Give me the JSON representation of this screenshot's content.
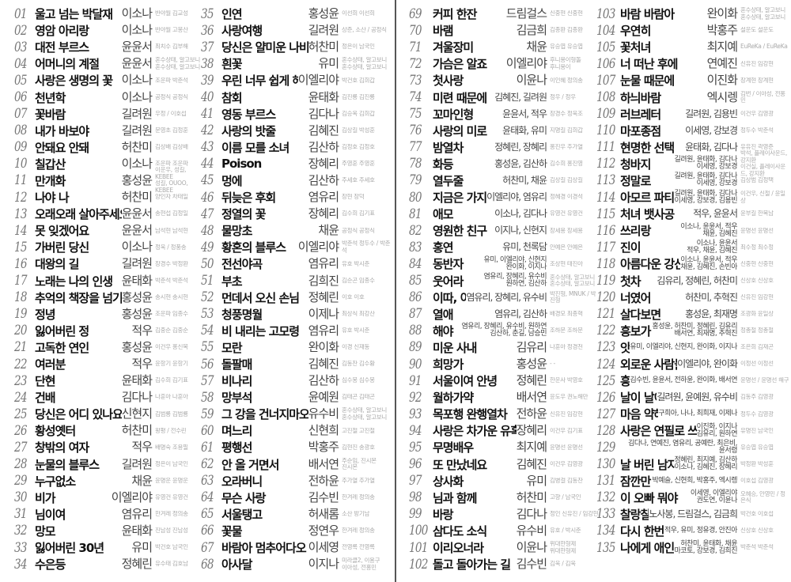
{
  "songs": [
    [
      "01",
      "울고 넘는 박달재",
      "이소나",
      "반야월 김교성"
    ],
    [
      "02",
      "영암 아리랑",
      "이소나",
      "반야월 고봉산"
    ],
    [
      "03",
      "대전 부르스",
      "윤윤서",
      "최치수 김부해"
    ],
    [
      "04",
      "어머니의 계절",
      "윤윤서",
      "혼수상태, 알고보니\n혼수상태, 알고보니"
    ],
    [
      "05",
      "사랑은 생명의 꽃",
      "이소나",
      "조운파 박춘석"
    ],
    [
      "06",
      "천년학",
      "이소나",
      "공정식 공정식"
    ],
    [
      "07",
      "꽃바람",
      "길려원",
      "우정 / 이호섭"
    ],
    [
      "08",
      "내가 바보야",
      "길려원",
      "문영초 김정훈"
    ],
    [
      "09",
      "안돼요 안돼",
      "허찬미",
      "김상배 김상배"
    ],
    [
      "10",
      "칠갑산",
      "이소나",
      "조운파 조운파"
    ],
    [
      "11",
      "만개화",
      "홍성윤",
      "이운우, 성길, KEBEE\n성길, OUOO, KEBEE"
    ],
    [
      "12",
      "나야 나",
      "허찬미",
      "양인자 차태일"
    ],
    [
      "13",
      "오래오래 살아주세요",
      "윤윤서",
      "송현섭 김정일"
    ],
    [
      "14",
      "못 잊겠어요",
      "윤윤서",
      "남석현 남석현"
    ],
    [
      "15",
      "가버린 당신",
      "이소나",
      "정욱 / 정풍송"
    ],
    [
      "16",
      "대왕의 길",
      "길려원",
      "장경수 박정환"
    ],
    [
      "17",
      "노래는 나의 인생",
      "윤태화",
      "박춘석 박춘석"
    ],
    [
      "18",
      "추억의 책장을 넘기면",
      "홍성윤",
      "송시현 송시현"
    ],
    [
      "19",
      "정녕",
      "홍성윤",
      "조운파 임종수"
    ],
    [
      "20",
      "잃어버린 정",
      "적우",
      "김중순 김중순"
    ],
    [
      "21",
      "고독한 연인",
      "홍성윤",
      "이건우 홍신복"
    ],
    [
      "22",
      "여러분",
      "적우",
      "윤항기 윤항기"
    ],
    [
      "23",
      "단현",
      "윤태화",
      "김수희 김기표"
    ],
    [
      "24",
      "건배",
      "김다나",
      "나훈아 나훈아"
    ],
    [
      "25",
      "당신은 어디 있나요",
      "신현지",
      "김범룡 김범룡"
    ],
    [
      "26",
      "황성옛터",
      "허찬미",
      "왕평 / 전수린"
    ],
    [
      "27",
      "창밖의 여자",
      "적우",
      "배명숙 조용필"
    ],
    [
      "28",
      "눈물의 블루스",
      "길려원",
      "정은이 남국인"
    ],
    [
      "29",
      "누구없소",
      "채윤",
      "윤명운 윤명운"
    ],
    [
      "30",
      "비가",
      "이엘리야",
      "유영건 유영건"
    ],
    [
      "31",
      "님이여",
      "염유리",
      "한겨레 정의송"
    ],
    [
      "32",
      "망모",
      "윤태화",
      "진남성 진남성"
    ],
    [
      "33",
      "잃어버린 30년",
      "유미",
      "박건호 남국인"
    ],
    [
      "34",
      "수은등",
      "정혜린",
      "유수태 김호남"
    ],
    [
      "35",
      "인연",
      "홍성윤",
      "이선희 이선희"
    ],
    [
      "36",
      "사랑여행",
      "길려원",
      "상준, 소산 / 공정식"
    ],
    [
      "37",
      "당신은 얄미운 나비",
      "허찬미",
      "정은이 남국인"
    ],
    [
      "38",
      "흰꽃",
      "유미",
      "혼수상태, 알고보니\n혼수상태, 알고보니"
    ],
    [
      "39",
      "우린 너무 쉽게 헤어졌어요",
      "이엘리야",
      "박건호 김희갑"
    ],
    [
      "40",
      "참회",
      "윤태화",
      "김진룡 김진룡"
    ],
    [
      "41",
      "영동 부르스",
      "김다나",
      "김승옥 김희갑"
    ],
    [
      "42",
      "사랑의 밧줄",
      "김혜진",
      "김상길 박성훈"
    ],
    [
      "43",
      "이름 모를 소녀",
      "김산하",
      "김정호 김정호"
    ],
    [
      "44",
      "Poison",
      "장혜리",
      "주영훈 주영훈"
    ],
    [
      "45",
      "멍에",
      "김산하",
      "추세호 추세호"
    ],
    [
      "46",
      "뒤늦은 후회",
      "염유리",
      "장현 장덕"
    ],
    [
      "47",
      "정열의 꽃",
      "장혜리",
      "김수희 김기표"
    ],
    [
      "48",
      "물망초",
      "채윤",
      "공정식 공정식"
    ],
    [
      "49",
      "황혼의 블루스",
      "이엘리야",
      "박춘석 정두수 / 박춘석"
    ],
    [
      "50",
      "전선야곡",
      "염유리",
      "유호 박시춘"
    ],
    [
      "51",
      "부초",
      "김희진",
      "김순곤 임종수"
    ],
    [
      "52",
      "먼데서 오신 손님",
      "정혜린",
      "이호 이호"
    ],
    [
      "53",
      "청풍명월",
      "이제나",
      "최상식 최강산"
    ],
    [
      "54",
      "비 내리는 고모령",
      "염유리",
      "유호 박시춘"
    ],
    [
      "55",
      "모란",
      "완이화",
      "이경 신재동"
    ],
    [
      "56",
      "돌팔매",
      "김혜진",
      "김동찬 김수황"
    ],
    [
      "57",
      "비나리",
      "김산하",
      "심수봉 심수봉"
    ],
    [
      "58",
      "망부석",
      "윤예원",
      "김태곤 김태곤"
    ],
    [
      "59",
      "그 강을 건너지마오",
      "유수비",
      "혼수상태, 알고보니\n혼수상태, 알고보니"
    ],
    [
      "60",
      "며느리",
      "신현희",
      "고진철 고진철"
    ],
    [
      "61",
      "평행선",
      "박홍주",
      "김현진 송광호"
    ],
    [
      "62",
      "안 올 거면서",
      "배서연",
      "주순임, 진시몬\n진시몬"
    ],
    [
      "63",
      "오라버니",
      "전하윤",
      "추가열 추가열"
    ],
    [
      "64",
      "무슨 사랑",
      "김수빈",
      "한겨레 정의송"
    ],
    [
      "65",
      "서울탱고",
      "허새롬",
      "소산 방기남"
    ],
    [
      "66",
      "꽃물",
      "정연우",
      "한겨레 정의송"
    ],
    [
      "67",
      "바람아 멈추어다오",
      "이세영",
      "전영록 전영록"
    ],
    [
      "68",
      "아사달",
      "이지나",
      "미라클2, 이용구\n이아성, 전홍민"
    ],
    [
      "69",
      "커피 한잔",
      "드림걸스",
      "신중현 신중현"
    ],
    [
      "70",
      "바램",
      "김금희",
      "김종환 김종환"
    ],
    [
      "71",
      "겨울장미",
      "채윤",
      "유승엽 유승엽"
    ],
    [
      "72",
      "가슴은 알죠",
      "이엘리야",
      "후니용이형돌\n후니용이"
    ],
    [
      "73",
      "첫사랑",
      "이윤나",
      "이인혜 정의송"
    ],
    [
      "74",
      "미련 때문에",
      "김혜진, 길려원",
      "정우 / 정우"
    ],
    [
      "75",
      "꼬마인형",
      "윤윤서, 적우",
      "장경수 정욱조"
    ],
    [
      "76",
      "사랑의 미로",
      "윤태화, 유미",
      "지명길 김희갑"
    ],
    [
      "77",
      "밤열차",
      "정혜린, 장혜리",
      "홍진우 추가열"
    ],
    [
      "78",
      "화등",
      "홍성윤, 김산하",
      "김수희 홍진영"
    ],
    [
      "79",
      "열두줄",
      "허찬미, 채윤",
      "김상길 김상길"
    ],
    [
      "80",
      "지금은 가지마세요",
      "이엘리야, 염유리",
      "정혜경 이경석"
    ],
    [
      "81",
      "애모",
      "이소나, 김다나",
      "유영건 유영건"
    ],
    [
      "82",
      "영원한 친구",
      "이지나, 신현지",
      "장세용 장세용"
    ],
    [
      "83",
      "홍연",
      "유미, 천록담",
      "안예은 안예은"
    ],
    [
      "84",
      "동반자",
      "유미, 이엘리야, 신현지\n완이화, 이지나",
      "조상현 태진아"
    ],
    [
      "85",
      "웃어라",
      "염유리, 장혜리, 유수비\n원하연, 김산하",
      "혼수상태, 알고보니\n혼수상태, 알고보니"
    ],
    [
      "86",
      "이따, 이따요",
      "염유리, 장혜리, 유수비",
      "박진형, MNUK / 박진형"
    ],
    [
      "87",
      "열애",
      "염유리, 김산하",
      "배경모 최종혁"
    ],
    [
      "88",
      "해야",
      "염유리, 장혜리, 유수비, 원하연\n김산하, 춘길, 남승민",
      "조하문 조하문"
    ],
    [
      "89",
      "미운 사내",
      "김유리",
      "나훈아 정경천"
    ],
    [
      "90",
      "희망가",
      "홍성윤",
      "-   -"
    ],
    [
      "91",
      "서울이여 안녕",
      "정혜린",
      "한운사 박영호"
    ],
    [
      "92",
      "월하가약",
      "배서연",
      "윤도우 권노해만"
    ],
    [
      "93",
      "목포행 완행열차",
      "전하윤",
      "신유진 임강현"
    ],
    [
      "94",
      "사랑은 차가운 유혹",
      "장혜리",
      "이건우 김기표"
    ],
    [
      "95",
      "무명배우",
      "최지예",
      "윤명선 윤명선"
    ],
    [
      "96",
      "또 만났네요",
      "김혜진",
      "이건우 김영광"
    ],
    [
      "97",
      "상사화",
      "유미",
      "김병걸 김동찬"
    ],
    [
      "98",
      "님과 함께",
      "허찬미",
      "고향 / 남국인"
    ],
    [
      "99",
      "바랑",
      "김다나",
      "정인 신유진 / 임강현"
    ],
    [
      "100",
      "삼다도 소식",
      "유수비",
      "유호 / 박시춘"
    ],
    [
      "101",
      "이리오너라",
      "이윤나",
      "위대한형제\n위대한형제"
    ],
    [
      "102",
      "돌고 돌아가는 길",
      "김수빈",
      "김욱 / 김욱"
    ],
    [
      "103",
      "바람 바람아",
      "완이화",
      "혼수상태, 알고보니\n혼수상태, 알고보니"
    ],
    [
      "104",
      "우연히",
      "박홍주",
      "설운도 설운도"
    ],
    [
      "105",
      "꽃처녀",
      "최지예",
      "EuReKa / EuReKa"
    ],
    [
      "106",
      "너 떠난 후에",
      "연예진",
      "신유진 임강현"
    ],
    [
      "107",
      "눈물 때문에",
      "이진화",
      "장계현 장계현"
    ],
    [
      "108",
      "하늬바람",
      "엑시렝",
      "김번 / 이아성, 전홍민"
    ],
    [
      "109",
      "러브레터",
      "길려원, 김용빈",
      "이건우 김영광"
    ],
    [
      "110",
      "마포종점",
      "이세영, 강보경",
      "정두수 박춘석"
    ],
    [
      "111",
      "현명한 선택",
      "윤태화, 김다나",
      "유유진 곽영준"
    ],
    [
      "112",
      "청바지",
      "길려원, 윤태화, 김다나\n이세영, 강보경",
      "박석, 플레이사운드, 강지환\n이건실, 플레이사운드, 강지환"
    ],
    [
      "113",
      "정말로",
      "길려원, 윤태화, 김다나\n이세영, 강보경",
      "김상범 김정택"
    ],
    [
      "114",
      "아모르 파티",
      "길려원, 윤태화, 김다나\n이세영, 강보경, 김용빈",
      "이건우, 신철 / 윤일상"
    ],
    [
      "115",
      "처녀 뱃사공",
      "적우, 윤윤서",
      "윤부길 한복남"
    ],
    [
      "116",
      "쓰리랑",
      "이소나, 윤윤서, 적우\n채윤, 김혜진",
      "윤명선 윤명선"
    ],
    [
      "117",
      "진이",
      "이소나, 윤윤서\n적우, 채윤, 김혜진",
      "최수정 최수정"
    ],
    [
      "118",
      "아름다운 강산",
      "이소나, 윤윤서, 적우\n채윤, 김혜진, 손빈아",
      "신중현 신중현"
    ],
    [
      "119",
      "첫차",
      "김유리, 정혜린, 허찬미",
      "신상호 신상호"
    ],
    [
      "120",
      "너였어",
      "허찬미, 추혁진",
      "신유진 임강현"
    ],
    [
      "121",
      "살다보면",
      "홍성윤, 최재명",
      "조광화 윤일상"
    ],
    [
      "122",
      "흥보가 기가 막혀",
      "홍성윤, 허찬미, 정혜린, 김유리\n배서연, 최재명, 추혁진",
      "정총철 정총철"
    ],
    [
      "123",
      "앗!뜨거",
      "유미, 이엘리야, 신현지, 완이화, 이지나",
      "조은희 김재곤"
    ],
    [
      "124",
      "외로운 사람들",
      "이엘리야, 완이화",
      "이정선 이정선"
    ],
    [
      "125",
      "흥아리랑",
      "김수빈, 윤윤서, 전하윤, 완이화, 배서연",
      "윤명선 / 윤명선 해구"
    ],
    [
      "126",
      "날이 날이 갈수록",
      "길려원, 윤예원, 유수비",
      "김동주 김영광"
    ],
    [
      "127",
      "마음 약해서",
      "구희아, 나나, 최희재, 이제나",
      "정두수 김영광"
    ],
    [
      "128",
      "사랑은 연필로 쓰세요",
      "이진화, 이지나\n김유리, 원하연",
      "유명진 남국인"
    ],
    [
      "129",
      "밤차",
      "김다나, 연예진, 염유리, 공예란, 최은비, 윤서령",
      "유승엽 유승엽"
    ],
    [
      "130",
      "날 버린 남자",
      "정혜린, 최지예, 김산하\n이소나, 김혜진, 장혜리",
      "박정환 박성훈"
    ],
    [
      "131",
      "잠깐만",
      "박예슬, 신현희, 박홍주, 엑시렝",
      "이호섭 김영광"
    ],
    [
      "132",
      "이 오빠 뭐야",
      "이세영, 이엘리야\n권도연, 이윤나",
      "오혜승, 안영민 / 정은식"
    ],
    [
      "133",
      "찰랑찰랑",
      "노사봉, 드림걸스, 김금희",
      "박건호 이호섭"
    ],
    [
      "134",
      "다시 한번만",
      "적우, 유미, 정유경, 안진아",
      "신상호 신상호"
    ],
    [
      "135",
      "나에게 애인이 있다면",
      "허찬미, 윤태화, 채윤\n마코토, 강보경, 김희진",
      "박춘석 박춘석"
    ]
  ]
}
